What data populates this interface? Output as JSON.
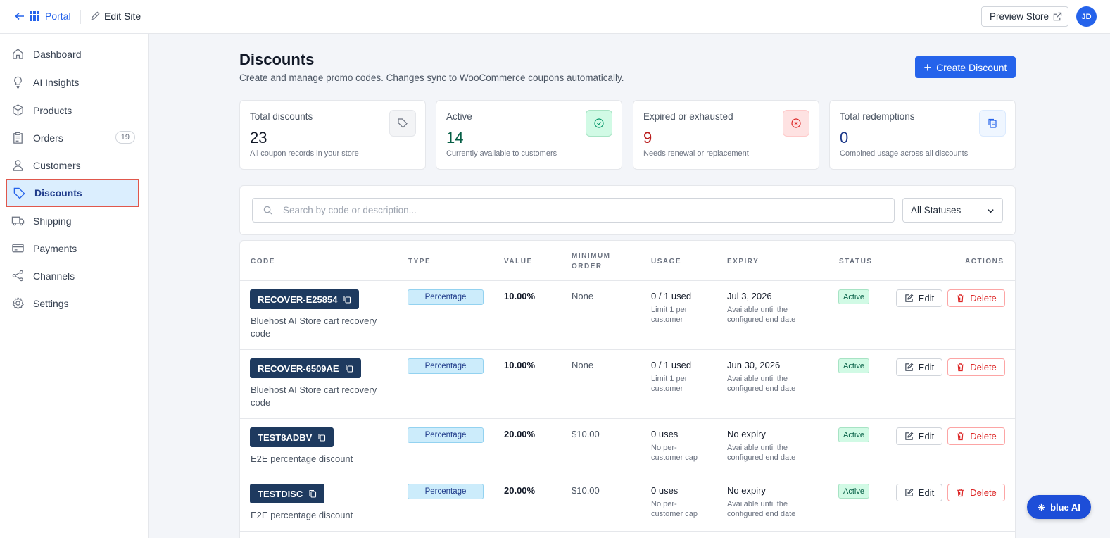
{
  "topbar": {
    "portal_label": "Portal",
    "edit_site_label": "Edit Site",
    "preview_label": "Preview Store",
    "avatar_initials": "JD"
  },
  "sidebar": {
    "items": [
      {
        "label": "Dashboard",
        "icon": "home-icon"
      },
      {
        "label": "AI Insights",
        "icon": "lightbulb-icon"
      },
      {
        "label": "Products",
        "icon": "box-icon"
      },
      {
        "label": "Orders",
        "icon": "clipboard-icon",
        "badge": "19"
      },
      {
        "label": "Customers",
        "icon": "user-icon"
      },
      {
        "label": "Discounts",
        "icon": "tag-icon",
        "active": true
      },
      {
        "label": "Shipping",
        "icon": "truck-icon"
      },
      {
        "label": "Payments",
        "icon": "credit-card-icon"
      },
      {
        "label": "Channels",
        "icon": "share-icon"
      },
      {
        "label": "Settings",
        "icon": "gear-icon"
      }
    ]
  },
  "page": {
    "title": "Discounts",
    "subtitle": "Create and manage promo codes. Changes sync to WooCommerce coupons automatically.",
    "create_label": "Create Discount"
  },
  "stats": [
    {
      "label": "Total discounts",
      "value": "23",
      "hint": "All coupon records in your store",
      "color": "#111827",
      "icon": "tag-icon"
    },
    {
      "label": "Active",
      "value": "14",
      "hint": "Currently available to customers",
      "color": "#065f46",
      "icon": "check-circle-icon"
    },
    {
      "label": "Expired or exhausted",
      "value": "9",
      "hint": "Needs renewal or replacement",
      "color": "#b91c1c",
      "icon": "x-circle-icon"
    },
    {
      "label": "Total redemptions",
      "value": "0",
      "hint": "Combined usage across all discounts",
      "color": "#1e3a8a",
      "icon": "copy-icon"
    }
  ],
  "filters": {
    "search_placeholder": "Search by code or description...",
    "status_value": "All Statuses"
  },
  "table": {
    "headers": {
      "code": "CODE",
      "type": "TYPE",
      "value": "VALUE",
      "min_line1": "MINIMUM",
      "min_line2": "ORDER",
      "usage": "USAGE",
      "expiry": "EXPIRY",
      "status": "STATUS",
      "actions": "ACTIONS"
    },
    "edit_label": "Edit",
    "delete_label": "Delete",
    "rows": [
      {
        "code": "RECOVER-E25854",
        "desc": "Bluehost AI Store cart recovery code",
        "type": "Percentage",
        "value": "10.00%",
        "min": "None",
        "usage": "0 / 1 used",
        "usage_sub": "Limit 1 per customer",
        "expiry": "Jul 3, 2026",
        "expiry_sub": "Available until the configured end date",
        "status": "Active"
      },
      {
        "code": "RECOVER-6509AE",
        "desc": "Bluehost AI Store cart recovery code",
        "type": "Percentage",
        "value": "10.00%",
        "min": "None",
        "usage": "0 / 1 used",
        "usage_sub": "Limit 1 per customer",
        "expiry": "Jun 30, 2026",
        "expiry_sub": "Available until the configured end date",
        "status": "Active"
      },
      {
        "code": "TEST8ADBV",
        "desc": "E2E percentage discount",
        "type": "Percentage",
        "value": "20.00%",
        "min": "$10.00",
        "usage": "0 uses",
        "usage_sub": "No per-customer cap",
        "expiry": "No expiry",
        "expiry_sub": "Available until the configured end date",
        "status": "Active"
      },
      {
        "code": "TESTDISC",
        "desc": "E2E percentage discount",
        "type": "Percentage",
        "value": "20.00%",
        "min": "$10.00",
        "usage": "0 uses",
        "usage_sub": "No per-customer cap",
        "expiry": "No expiry",
        "expiry_sub": "Available until the configured end date",
        "status": "Active"
      }
    ]
  },
  "assistant": {
    "label": "blue AI"
  }
}
